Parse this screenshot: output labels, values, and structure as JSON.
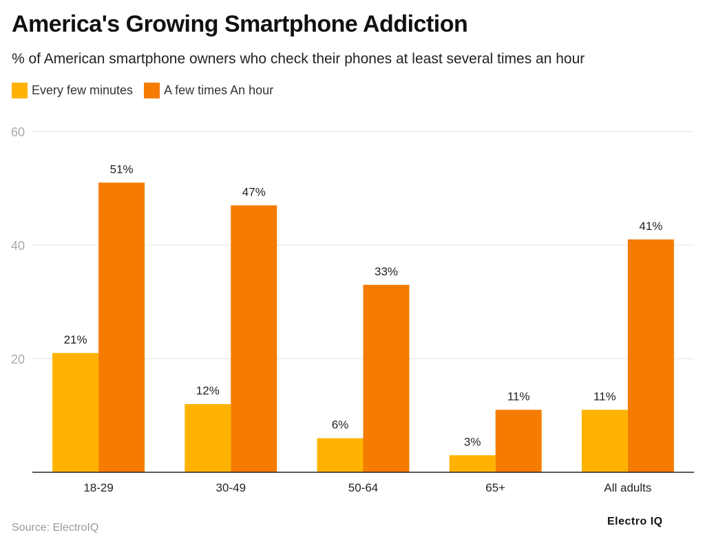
{
  "chart_data": {
    "type": "bar",
    "title": "America's Growing Smartphone Addiction",
    "subtitle": "% of American smartphone owners who check their phones at least several times an hour",
    "categories": [
      "18-29",
      "30-49",
      "50-64",
      "65+",
      "All adults"
    ],
    "series": [
      {
        "name": "Every few minutes",
        "color": "#FFB300",
        "values": [
          21,
          12,
          6,
          3,
          11
        ]
      },
      {
        "name": "A few times An hour",
        "color": "#F57C00",
        "values": [
          51,
          47,
          33,
          11,
          41
        ]
      }
    ],
    "ylim": [
      0,
      60
    ],
    "yticks": [
      20,
      40,
      60
    ],
    "value_suffix": "%",
    "grid": true,
    "legend_position": "top-left",
    "source": "Source: ElectroIQ",
    "logo": "Electro IQ"
  }
}
